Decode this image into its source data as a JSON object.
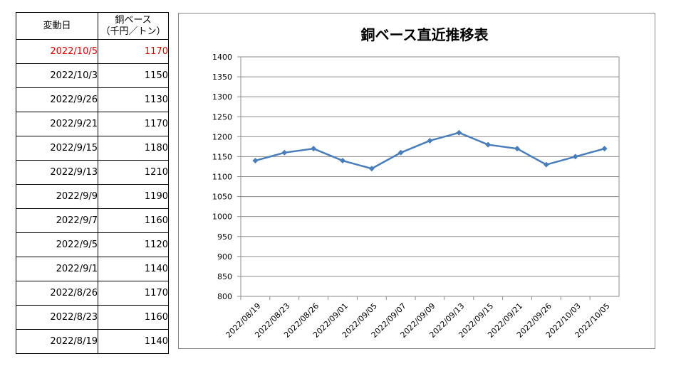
{
  "table": {
    "header_date": "変動日",
    "header_value_line1": "銅ベース",
    "header_value_line2": "（千円／トン）",
    "rows": [
      {
        "date": "2022/10/5",
        "value": "1170",
        "highlight": true
      },
      {
        "date": "2022/10/3",
        "value": "1150"
      },
      {
        "date": "2022/9/26",
        "value": "1130"
      },
      {
        "date": "2022/9/21",
        "value": "1170"
      },
      {
        "date": "2022/9/15",
        "value": "1180"
      },
      {
        "date": "2022/9/13",
        "value": "1210"
      },
      {
        "date": "2022/9/9",
        "value": "1190"
      },
      {
        "date": "2022/9/7",
        "value": "1160"
      },
      {
        "date": "2022/9/5",
        "value": "1120"
      },
      {
        "date": "2022/9/1",
        "value": "1140"
      },
      {
        "date": "2022/8/26",
        "value": "1170"
      },
      {
        "date": "2022/8/23",
        "value": "1160"
      },
      {
        "date": "2022/8/19",
        "value": "1140"
      }
    ]
  },
  "colors": {
    "highlight": "#e00000",
    "series": "#4a7ebb",
    "grid": "#8c8c8c"
  },
  "chart_data": {
    "type": "line",
    "title": "銅ベース直近推移表",
    "categories": [
      "2022/08/19",
      "2022/08/23",
      "2022/08/26",
      "2022/09/01",
      "2022/09/05",
      "2022/09/07",
      "2022/09/09",
      "2022/09/13",
      "2022/09/15",
      "2022/09/21",
      "2022/09/26",
      "2022/10/03",
      "2022/10/05"
    ],
    "values": [
      1140,
      1160,
      1170,
      1140,
      1120,
      1160,
      1190,
      1210,
      1180,
      1170,
      1130,
      1150,
      1170
    ],
    "yticks": [
      800,
      850,
      900,
      950,
      1000,
      1050,
      1100,
      1150,
      1200,
      1250,
      1300,
      1350,
      1400
    ],
    "ylim": [
      800,
      1400
    ],
    "grid": true,
    "marker": "diamond"
  }
}
